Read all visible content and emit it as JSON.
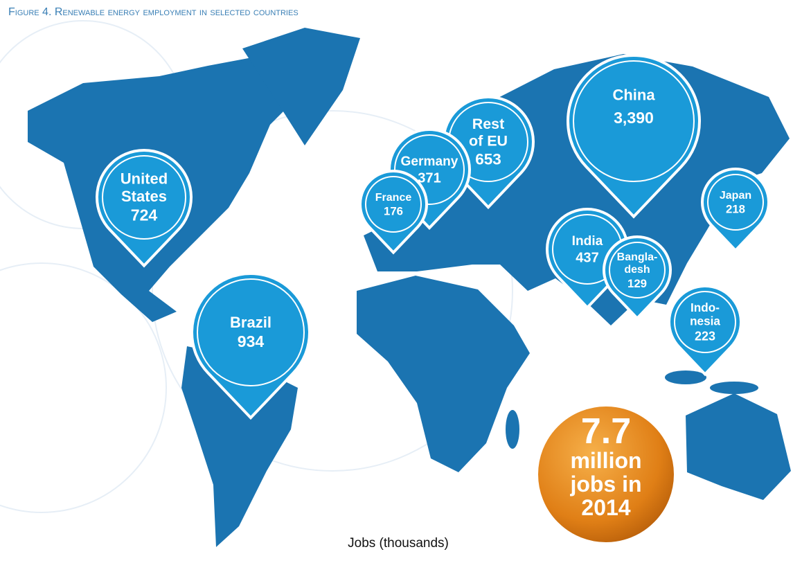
{
  "header": {
    "title": "Figure 4. Renewable energy employment in selected countries"
  },
  "pins": [
    {
      "name_lines": [
        "United",
        "States"
      ],
      "value": 724
    },
    {
      "name_lines": [
        "Brazil"
      ],
      "value": 934
    },
    {
      "name_lines": [
        "France"
      ],
      "value": 176
    },
    {
      "name_lines": [
        "Germany"
      ],
      "value": 371
    },
    {
      "name_lines": [
        "Rest",
        "of EU"
      ],
      "value": 653
    },
    {
      "name_lines": [
        "China"
      ],
      "value": 3390,
      "value_label": "3,390"
    },
    {
      "name_lines": [
        "Japan"
      ],
      "value": 218
    },
    {
      "name_lines": [
        "India"
      ],
      "value": 437
    },
    {
      "name_lines": [
        "Bangla-",
        "desh"
      ],
      "value": 129
    },
    {
      "name_lines": [
        "Indo-",
        "nesia"
      ],
      "value": 223
    }
  ],
  "badge": {
    "value": 7.7,
    "lines": [
      "million",
      "jobs in",
      "2014"
    ]
  },
  "footer": {
    "note": "Jobs (thousands)"
  }
}
